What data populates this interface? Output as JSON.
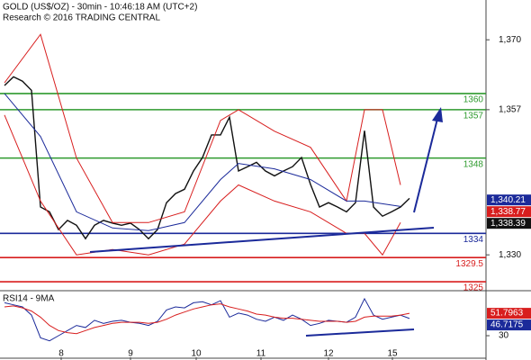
{
  "chart_data": [
    {
      "type": "line",
      "title": "GOLD (US$/OZ) - 30min - 10:46:18 AM (UTC+2)",
      "subtitle": "Research © 2016 TRADING CENTRAL",
      "xlim": [
        -0.5,
        53.5
      ],
      "ylim": [
        1323.5,
        1377.4
      ],
      "yticks": [
        {
          "value": 1370,
          "label": "1,370"
        },
        {
          "value": 1357,
          "label": "1,357"
        },
        {
          "value": 1330,
          "label": "1,330"
        }
      ],
      "levels": [
        {
          "value": 1360,
          "color": "#2e9a2e"
        },
        {
          "value": 1357,
          "color": "#2e9a2e"
        },
        {
          "value": 1348,
          "color": "#2e9a2e"
        },
        {
          "value": 1334,
          "color": "#1b2a9a"
        },
        {
          "value": 1329.5,
          "color": "#d81e1e"
        },
        {
          "value": 1325,
          "color": "#d81e1e"
        }
      ],
      "price_labels": [
        {
          "value": 1340.21,
          "label": "1,340.21",
          "color": "#1b2a9a"
        },
        {
          "value": 1338.77,
          "label": "1,338.77",
          "color": "#d81e1e"
        },
        {
          "value": 1338.39,
          "label": "1,338.39",
          "color": "#111111"
        }
      ],
      "series": [
        {
          "color": "#111111",
          "x": [
            0,
            1,
            2,
            3,
            4,
            5,
            6,
            7,
            8,
            9,
            10,
            11,
            12,
            13,
            14,
            15,
            16,
            17,
            18,
            19,
            20,
            21,
            22,
            23,
            24,
            25,
            26,
            27,
            28,
            29,
            30,
            31,
            32,
            33,
            34,
            35,
            36,
            37,
            38,
            39,
            40,
            41,
            42,
            43,
            44,
            45
          ],
          "values": [
            1361.5,
            1363.1,
            1362.3,
            1360.6,
            1338.9,
            1338,
            1334.7,
            1336.4,
            1335.5,
            1333,
            1335.5,
            1336.4,
            1335.9,
            1335.5,
            1335.9,
            1334.7,
            1333,
            1334.7,
            1339.7,
            1341.4,
            1342.2,
            1345.6,
            1348.1,
            1352.3,
            1352.3,
            1355.6,
            1345.6,
            1346.4,
            1347.2,
            1345.6,
            1344.7,
            1345.6,
            1346.4,
            1348.1,
            1343.1,
            1338.9,
            1339.7,
            1338.9,
            1338,
            1339.7,
            1353.1,
            1338.9,
            1337.2,
            1338,
            1338.9,
            1340.5
          ]
        },
        {
          "color": "#d81e1e",
          "x": [
            0,
            4,
            8,
            12,
            16,
            20,
            24,
            26,
            30,
            34,
            38,
            40,
            42,
            44
          ],
          "values": [
            1362,
            1371,
            1348,
            1336,
            1336,
            1338,
            1355,
            1357,
            1353,
            1350,
            1340,
            1357,
            1357,
            1343
          ]
        },
        {
          "color": "#d81e1e",
          "x": [
            0,
            4,
            8,
            12,
            16,
            20,
            24,
            26,
            30,
            34,
            38,
            40,
            42,
            44
          ],
          "values": [
            1356,
            1340,
            1330,
            1331,
            1330,
            1332,
            1340,
            1343,
            1340,
            1338,
            1334,
            1334,
            1330,
            1336
          ]
        },
        {
          "color": "#1b2a9a",
          "x": [
            0,
            4,
            8,
            12,
            16,
            20,
            24,
            26,
            30,
            34,
            38,
            40,
            42,
            44
          ],
          "values": [
            1360,
            1352,
            1338,
            1335,
            1334.5,
            1336,
            1344,
            1347,
            1346,
            1344,
            1340,
            1340,
            1339.5,
            1339
          ]
        }
      ]
    },
    {
      "type": "line",
      "title": "RSI14 - 9MA",
      "xlim": [
        -0.5,
        53.5
      ],
      "ylim": [
        9,
        72
      ],
      "yticks": [
        30
      ],
      "xticks": [
        {
          "value": 6.3,
          "label": "8"
        },
        {
          "value": 14,
          "label": "9"
        },
        {
          "value": 21.3,
          "label": "10"
        },
        {
          "value": 28.5,
          "label": "11"
        },
        {
          "value": 36,
          "label": "12"
        },
        {
          "value": 43.1,
          "label": "15"
        }
      ],
      "price_labels": [
        {
          "value": 51.7963,
          "label": "51.7963",
          "color": "#d81e1e"
        },
        {
          "value": 46.7175,
          "label": "46.7175",
          "color": "#1b2a9a"
        }
      ],
      "series": [
        {
          "color": "#1b2a9a",
          "x": [
            0,
            1,
            2,
            3,
            4,
            5,
            6,
            7,
            8,
            9,
            10,
            11,
            12,
            13,
            14,
            15,
            16,
            17,
            18,
            19,
            20,
            21,
            22,
            23,
            24,
            25,
            26,
            27,
            28,
            29,
            30,
            31,
            32,
            33,
            34,
            35,
            36,
            37,
            38,
            39,
            40,
            41,
            42,
            43,
            44,
            45
          ],
          "values": [
            62,
            60,
            58,
            50,
            28,
            25,
            30,
            35,
            40,
            38,
            45,
            42,
            44,
            45,
            43,
            42,
            40,
            44,
            55,
            58,
            57,
            62,
            63,
            60,
            64,
            48,
            52,
            50,
            46,
            44,
            48,
            45,
            50,
            46,
            40,
            42,
            45,
            44,
            43,
            48,
            66,
            50,
            46,
            48,
            50,
            46.7
          ]
        },
        {
          "color": "#d81e1e",
          "x": [
            0,
            1,
            2,
            3,
            4,
            5,
            6,
            7,
            8,
            9,
            10,
            11,
            12,
            13,
            14,
            15,
            16,
            17,
            18,
            19,
            20,
            21,
            22,
            23,
            24,
            25,
            26,
            27,
            28,
            29,
            30,
            31,
            32,
            33,
            34,
            35,
            36,
            37,
            38,
            39,
            40,
            41,
            42,
            43,
            44,
            45
          ],
          "values": [
            58,
            59,
            57,
            54,
            48,
            40,
            35,
            33,
            32,
            35,
            38,
            40,
            42,
            43,
            43,
            43,
            42,
            43,
            46,
            50,
            53,
            56,
            58,
            60,
            61,
            58,
            56,
            54,
            51,
            50,
            48,
            47,
            47,
            46,
            45,
            44,
            44,
            44,
            43,
            44,
            48,
            49,
            49,
            49,
            50,
            51.8
          ]
        }
      ]
    }
  ]
}
